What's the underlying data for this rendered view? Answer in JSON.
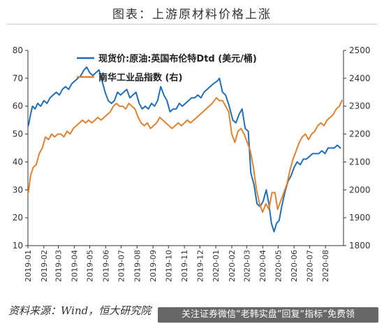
{
  "header": {
    "title": "图表：上游原材料价格上涨"
  },
  "footer": {
    "source": "资料来源：Wind，恒大研究院"
  },
  "overlay": {
    "watermark_text": "关注证券微信“老韩实盘”回复“指标”免费领"
  },
  "colors": {
    "brent": "#1f6fb8",
    "nanhua": "#e0822f",
    "axis": "#333333",
    "title_rule": "#c9c9c9"
  },
  "chart_data": {
    "type": "line",
    "title": "",
    "xlabel": "",
    "ylabel": "",
    "y2label": "",
    "grid": false,
    "legend_position": "top-left",
    "x_ticks": [
      "2019-01",
      "2019-02",
      "2019-03",
      "2019-04",
      "2019-05",
      "2019-06",
      "2019-07",
      "2019-08",
      "2019-09",
      "2019-10",
      "2019-11",
      "2019-12",
      "2020-01",
      "2020-02",
      "2020-03",
      "2020-04",
      "2020-05",
      "2020-06",
      "2020-07",
      "2020-08"
    ],
    "ylim": [
      10,
      80
    ],
    "y_ticks": [
      10,
      20,
      30,
      40,
      50,
      60,
      70,
      80
    ],
    "y2lim": [
      1800,
      2500
    ],
    "y2_ticks": [
      1800,
      1900,
      2000,
      2100,
      2200,
      2300,
      2400,
      2500
    ],
    "x_domain": [
      "2019-01-01",
      "2020-09-05"
    ],
    "series": [
      {
        "name": "现货价:原油:英国布伦特Dtd (美元/桶)",
        "axis": "left",
        "color": "#1f6fb8",
        "points": [
          [
            "2019-01-02",
            53
          ],
          [
            "2019-01-06",
            57
          ],
          [
            "2019-01-10",
            60
          ],
          [
            "2019-01-15",
            59
          ],
          [
            "2019-01-20",
            61
          ],
          [
            "2019-01-26",
            60
          ],
          [
            "2019-02-01",
            62
          ],
          [
            "2019-02-07",
            61
          ],
          [
            "2019-02-13",
            63
          ],
          [
            "2019-02-19",
            64
          ],
          [
            "2019-02-25",
            65
          ],
          [
            "2019-03-03",
            64
          ],
          [
            "2019-03-09",
            66
          ],
          [
            "2019-03-15",
            67
          ],
          [
            "2019-03-21",
            66
          ],
          [
            "2019-03-27",
            68
          ],
          [
            "2019-04-02",
            69
          ],
          [
            "2019-04-08",
            70
          ],
          [
            "2019-04-14",
            71
          ],
          [
            "2019-04-20",
            73
          ],
          [
            "2019-04-25",
            74
          ],
          [
            "2019-05-01",
            72
          ],
          [
            "2019-05-07",
            71
          ],
          [
            "2019-05-13",
            72
          ],
          [
            "2019-05-19",
            73
          ],
          [
            "2019-05-25",
            69
          ],
          [
            "2019-05-31",
            65
          ],
          [
            "2019-06-06",
            62
          ],
          [
            "2019-06-12",
            61
          ],
          [
            "2019-06-18",
            62
          ],
          [
            "2019-06-24",
            65
          ],
          [
            "2019-06-30",
            64
          ],
          [
            "2019-07-06",
            65
          ],
          [
            "2019-07-12",
            66
          ],
          [
            "2019-07-18",
            63
          ],
          [
            "2019-07-24",
            64
          ],
          [
            "2019-07-30",
            65
          ],
          [
            "2019-08-05",
            61
          ],
          [
            "2019-08-11",
            59
          ],
          [
            "2019-08-17",
            60
          ],
          [
            "2019-08-23",
            59
          ],
          [
            "2019-08-29",
            61
          ],
          [
            "2019-09-04",
            60
          ],
          [
            "2019-09-10",
            62
          ],
          [
            "2019-09-16",
            67
          ],
          [
            "2019-09-22",
            64
          ],
          [
            "2019-09-28",
            62
          ],
          [
            "2019-10-04",
            58
          ],
          [
            "2019-10-10",
            59
          ],
          [
            "2019-10-16",
            59
          ],
          [
            "2019-10-22",
            61
          ],
          [
            "2019-10-28",
            60
          ],
          [
            "2019-11-03",
            61
          ],
          [
            "2019-11-09",
            62
          ],
          [
            "2019-11-15",
            63
          ],
          [
            "2019-11-21",
            63
          ],
          [
            "2019-11-27",
            64
          ],
          [
            "2019-12-03",
            63
          ],
          [
            "2019-12-09",
            65
          ],
          [
            "2019-12-15",
            66
          ],
          [
            "2019-12-21",
            67
          ],
          [
            "2019-12-27",
            68
          ],
          [
            "2020-01-04",
            69
          ],
          [
            "2020-01-08",
            70
          ],
          [
            "2020-01-14",
            65
          ],
          [
            "2020-01-20",
            64
          ],
          [
            "2020-01-27",
            60
          ],
          [
            "2020-02-03",
            55
          ],
          [
            "2020-02-09",
            54
          ],
          [
            "2020-02-15",
            57
          ],
          [
            "2020-02-21",
            59
          ],
          [
            "2020-02-27",
            52
          ],
          [
            "2020-03-04",
            51
          ],
          [
            "2020-03-09",
            36
          ],
          [
            "2020-03-15",
            32
          ],
          [
            "2020-03-21",
            25
          ],
          [
            "2020-03-27",
            24
          ],
          [
            "2020-04-02",
            26
          ],
          [
            "2020-04-08",
            30
          ],
          [
            "2020-04-13",
            25
          ],
          [
            "2020-04-18",
            18
          ],
          [
            "2020-04-23",
            15
          ],
          [
            "2020-04-28",
            18
          ],
          [
            "2020-05-03",
            19
          ],
          [
            "2020-05-08",
            24
          ],
          [
            "2020-05-14",
            29
          ],
          [
            "2020-05-20",
            33
          ],
          [
            "2020-05-26",
            35
          ],
          [
            "2020-06-01",
            38
          ],
          [
            "2020-06-07",
            40
          ],
          [
            "2020-06-13",
            39
          ],
          [
            "2020-06-19",
            41
          ],
          [
            "2020-06-25",
            41
          ],
          [
            "2020-07-01",
            42
          ],
          [
            "2020-07-07",
            43
          ],
          [
            "2020-07-13",
            43
          ],
          [
            "2020-07-19",
            43
          ],
          [
            "2020-07-25",
            44
          ],
          [
            "2020-07-31",
            43
          ],
          [
            "2020-08-06",
            45
          ],
          [
            "2020-08-12",
            45
          ],
          [
            "2020-08-18",
            45
          ],
          [
            "2020-08-24",
            46
          ],
          [
            "2020-08-30",
            45
          ]
        ]
      },
      {
        "name": "南华工业品指数 (右)",
        "axis": "right",
        "color": "#e0822f",
        "points": [
          [
            "2019-01-02",
            1990
          ],
          [
            "2019-01-06",
            2050
          ],
          [
            "2019-01-11",
            2080
          ],
          [
            "2019-01-17",
            2090
          ],
          [
            "2019-01-23",
            2130
          ],
          [
            "2019-01-29",
            2150
          ],
          [
            "2019-02-04",
            2190
          ],
          [
            "2019-02-10",
            2180
          ],
          [
            "2019-02-16",
            2200
          ],
          [
            "2019-02-22",
            2190
          ],
          [
            "2019-02-28",
            2200
          ],
          [
            "2019-03-06",
            2200
          ],
          [
            "2019-03-12",
            2190
          ],
          [
            "2019-03-18",
            2210
          ],
          [
            "2019-03-24",
            2200
          ],
          [
            "2019-03-30",
            2220
          ],
          [
            "2019-04-05",
            2230
          ],
          [
            "2019-04-11",
            2240
          ],
          [
            "2019-04-17",
            2250
          ],
          [
            "2019-04-23",
            2240
          ],
          [
            "2019-04-29",
            2250
          ],
          [
            "2019-05-05",
            2240
          ],
          [
            "2019-05-11",
            2250
          ],
          [
            "2019-05-17",
            2260
          ],
          [
            "2019-05-23",
            2250
          ],
          [
            "2019-05-29",
            2260
          ],
          [
            "2019-06-04",
            2270
          ],
          [
            "2019-06-10",
            2280
          ],
          [
            "2019-06-16",
            2300
          ],
          [
            "2019-06-22",
            2310
          ],
          [
            "2019-06-28",
            2300
          ],
          [
            "2019-07-04",
            2300
          ],
          [
            "2019-07-10",
            2290
          ],
          [
            "2019-07-16",
            2310
          ],
          [
            "2019-07-22",
            2300
          ],
          [
            "2019-07-28",
            2290
          ],
          [
            "2019-08-03",
            2260
          ],
          [
            "2019-08-09",
            2240
          ],
          [
            "2019-08-15",
            2230
          ],
          [
            "2019-08-21",
            2240
          ],
          [
            "2019-08-27",
            2220
          ],
          [
            "2019-09-02",
            2230
          ],
          [
            "2019-09-08",
            2240
          ],
          [
            "2019-09-14",
            2260
          ],
          [
            "2019-09-20",
            2250
          ],
          [
            "2019-09-26",
            2240
          ],
          [
            "2019-10-02",
            2230
          ],
          [
            "2019-10-08",
            2220
          ],
          [
            "2019-10-14",
            2230
          ],
          [
            "2019-10-20",
            2240
          ],
          [
            "2019-10-26",
            2230
          ],
          [
            "2019-11-01",
            2240
          ],
          [
            "2019-11-07",
            2250
          ],
          [
            "2019-11-13",
            2240
          ],
          [
            "2019-11-19",
            2250
          ],
          [
            "2019-11-25",
            2260
          ],
          [
            "2019-12-01",
            2270
          ],
          [
            "2019-12-07",
            2280
          ],
          [
            "2019-12-13",
            2290
          ],
          [
            "2019-12-19",
            2300
          ],
          [
            "2019-12-25",
            2310
          ],
          [
            "2020-01-02",
            2330
          ],
          [
            "2020-01-08",
            2320
          ],
          [
            "2020-01-14",
            2320
          ],
          [
            "2020-01-20",
            2300
          ],
          [
            "2020-01-26",
            2280
          ],
          [
            "2020-02-01",
            2200
          ],
          [
            "2020-02-07",
            2170
          ],
          [
            "2020-02-13",
            2210
          ],
          [
            "2020-02-19",
            2220
          ],
          [
            "2020-02-25",
            2200
          ],
          [
            "2020-03-02",
            2170
          ],
          [
            "2020-03-08",
            2140
          ],
          [
            "2020-03-14",
            2080
          ],
          [
            "2020-03-20",
            2000
          ],
          [
            "2020-03-26",
            1950
          ],
          [
            "2020-04-01",
            1920
          ],
          [
            "2020-04-07",
            1950
          ],
          [
            "2020-04-13",
            1930
          ],
          [
            "2020-04-19",
            1990
          ],
          [
            "2020-04-25",
            1990
          ],
          [
            "2020-04-30",
            1930
          ],
          [
            "2020-05-06",
            1960
          ],
          [
            "2020-05-12",
            1990
          ],
          [
            "2020-05-18",
            2020
          ],
          [
            "2020-05-24",
            2070
          ],
          [
            "2020-05-30",
            2110
          ],
          [
            "2020-06-05",
            2140
          ],
          [
            "2020-06-11",
            2170
          ],
          [
            "2020-06-17",
            2190
          ],
          [
            "2020-06-23",
            2200
          ],
          [
            "2020-06-29",
            2180
          ],
          [
            "2020-07-05",
            2200
          ],
          [
            "2020-07-11",
            2210
          ],
          [
            "2020-07-17",
            2230
          ],
          [
            "2020-07-23",
            2240
          ],
          [
            "2020-07-29",
            2230
          ],
          [
            "2020-08-04",
            2250
          ],
          [
            "2020-08-10",
            2260
          ],
          [
            "2020-08-16",
            2270
          ],
          [
            "2020-08-22",
            2290
          ],
          [
            "2020-08-28",
            2300
          ],
          [
            "2020-09-02",
            2320
          ]
        ]
      }
    ]
  }
}
